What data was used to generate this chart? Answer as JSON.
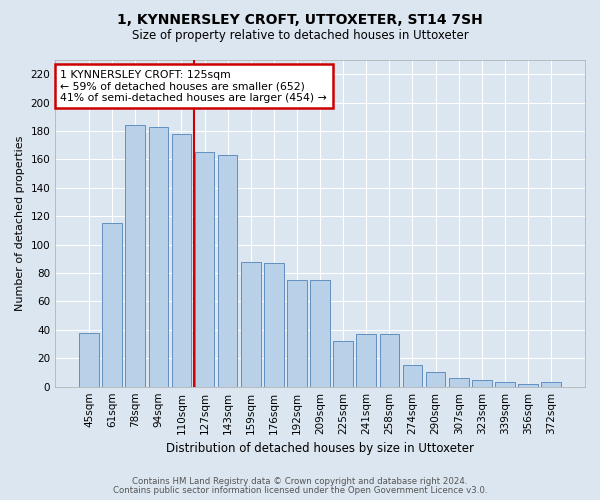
{
  "title": "1, KYNNERSLEY CROFT, UTTOXETER, ST14 7SH",
  "subtitle": "Size of property relative to detached houses in Uttoxeter",
  "xlabel": "Distribution of detached houses by size in Uttoxeter",
  "ylabel": "Number of detached properties",
  "categories": [
    "45sqm",
    "61sqm",
    "78sqm",
    "94sqm",
    "110sqm",
    "127sqm",
    "143sqm",
    "159sqm",
    "176sqm",
    "192sqm",
    "209sqm",
    "225sqm",
    "241sqm",
    "258sqm",
    "274sqm",
    "290sqm",
    "307sqm",
    "323sqm",
    "339sqm",
    "356sqm",
    "372sqm"
  ],
  "values": [
    38,
    115,
    184,
    183,
    178,
    165,
    163,
    88,
    87,
    75,
    75,
    32,
    37,
    37,
    15,
    10,
    6,
    5,
    3,
    2,
    3
  ],
  "bar_color": "#b8d0e8",
  "bar_edge_color": "#6090c0",
  "red_line_x": 4.55,
  "red_line_label": "1 KYNNERSLEY CROFT: 125sqm",
  "annotation_line1": "← 59% of detached houses are smaller (652)",
  "annotation_line2": "41% of semi-detached houses are larger (454) →",
  "annotation_box_color": "#ffffff",
  "annotation_box_edge": "#cc0000",
  "red_line_color": "#cc0000",
  "bg_color": "#dce6f0",
  "plot_bg_color": "#dce6f0",
  "grid_color": "#ffffff",
  "ylim": [
    0,
    230
  ],
  "yticks": [
    0,
    20,
    40,
    60,
    80,
    100,
    120,
    140,
    160,
    180,
    200,
    220
  ],
  "footnote1": "Contains HM Land Registry data © Crown copyright and database right 2024.",
  "footnote2": "Contains public sector information licensed under the Open Government Licence v3.0."
}
